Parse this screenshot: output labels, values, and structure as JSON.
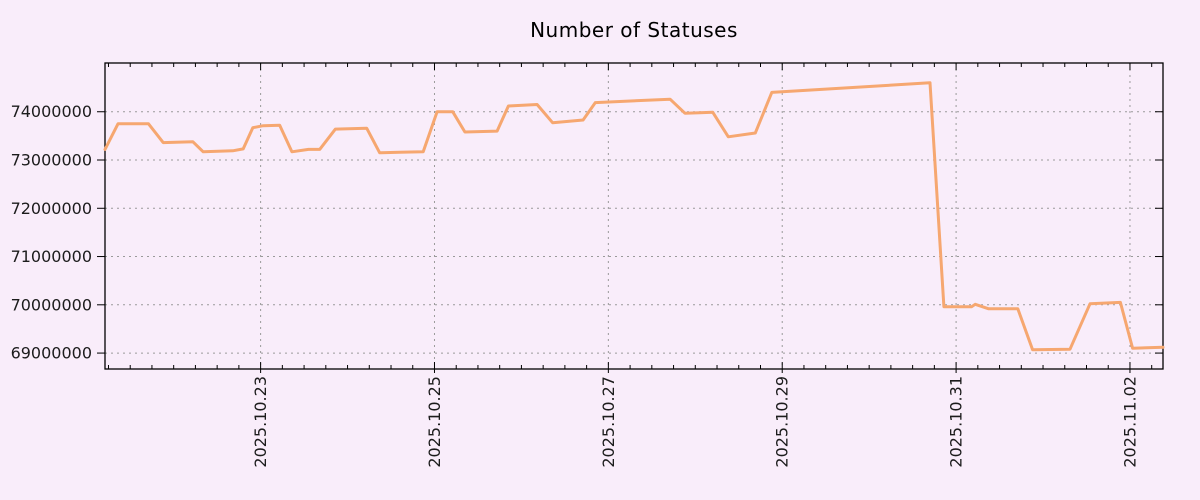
{
  "title": "Number of Statuses",
  "colors": {
    "background": "#f9edfa",
    "line": "#f6a770",
    "grid": "#9a9a9a",
    "axis": "#000000",
    "text": "#1c1c1c"
  },
  "chart_data": {
    "type": "line",
    "title": "Number of Statuses",
    "series_name": "statuses",
    "legend": "none",
    "grid": true,
    "x_unit": "days since 2025-10-21 00:00",
    "x_range": [
      0.21,
      12.38
    ],
    "x_major_ticks": [
      {
        "t": 2,
        "label": "2025.10.23"
      },
      {
        "t": 4,
        "label": "2025.10.25"
      },
      {
        "t": 6,
        "label": "2025.10.27"
      },
      {
        "t": 8,
        "label": "2025.10.29"
      },
      {
        "t": 10,
        "label": "2025.10.31"
      },
      {
        "t": 12,
        "label": "2025.11.02"
      }
    ],
    "x_minor_tick_days": 0.25,
    "y_range": [
      68670000,
      75010000
    ],
    "y_ticks": [
      69000000,
      70000000,
      71000000,
      72000000,
      73000000,
      74000000
    ],
    "points": [
      [
        0.21,
        73220000
      ],
      [
        0.36,
        73750000
      ],
      [
        0.71,
        73750000
      ],
      [
        0.88,
        73360000
      ],
      [
        1.22,
        73380000
      ],
      [
        1.34,
        73170000
      ],
      [
        1.68,
        73190000
      ],
      [
        1.8,
        73230000
      ],
      [
        1.91,
        73670000
      ],
      [
        2.03,
        73710000
      ],
      [
        2.22,
        73720000
      ],
      [
        2.36,
        73170000
      ],
      [
        2.55,
        73220000
      ],
      [
        2.68,
        73220000
      ],
      [
        2.86,
        73640000
      ],
      [
        3.22,
        73660000
      ],
      [
        3.37,
        73150000
      ],
      [
        3.6,
        73160000
      ],
      [
        3.87,
        73170000
      ],
      [
        4.03,
        74000000
      ],
      [
        4.21,
        74000000
      ],
      [
        4.35,
        73580000
      ],
      [
        4.72,
        73600000
      ],
      [
        4.85,
        74120000
      ],
      [
        5.18,
        74150000
      ],
      [
        5.36,
        73770000
      ],
      [
        5.71,
        73830000
      ],
      [
        5.85,
        74190000
      ],
      [
        6.71,
        74260000
      ],
      [
        6.88,
        73970000
      ],
      [
        7.05,
        73980000
      ],
      [
        7.2,
        73990000
      ],
      [
        7.38,
        73480000
      ],
      [
        7.69,
        73560000
      ],
      [
        7.88,
        74400000
      ],
      [
        9.7,
        74600000
      ],
      [
        9.86,
        69960000
      ],
      [
        10.18,
        69960000
      ],
      [
        10.22,
        70010000
      ],
      [
        10.37,
        69920000
      ],
      [
        10.71,
        69920000
      ],
      [
        10.88,
        69070000
      ],
      [
        11.31,
        69080000
      ],
      [
        11.54,
        70020000
      ],
      [
        11.89,
        70050000
      ],
      [
        12.03,
        69100000
      ],
      [
        12.38,
        69120000
      ]
    ]
  }
}
